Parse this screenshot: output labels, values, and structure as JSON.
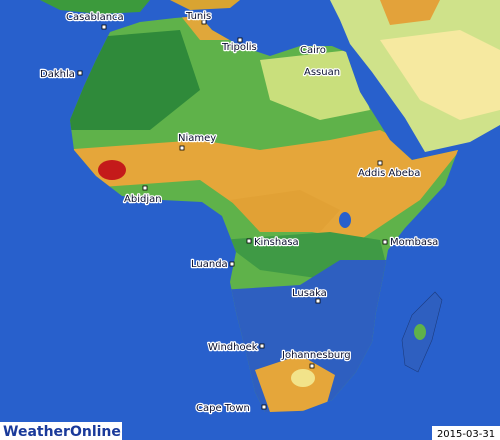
{
  "cities": [
    "Casablanca",
    "Tunis",
    "Tripolis",
    "Cairo",
    "Assuan",
    "Dakhla",
    "Niamey",
    "Addis Abeba",
    "Abidjan",
    "Kinshasa",
    "Mombasa",
    "Luanda",
    "Lusaka",
    "Windhoek",
    "Johannesburg",
    "Cape Town"
  ],
  "logo": "WeatherOnline",
  "date": "2015-03-31"
}
